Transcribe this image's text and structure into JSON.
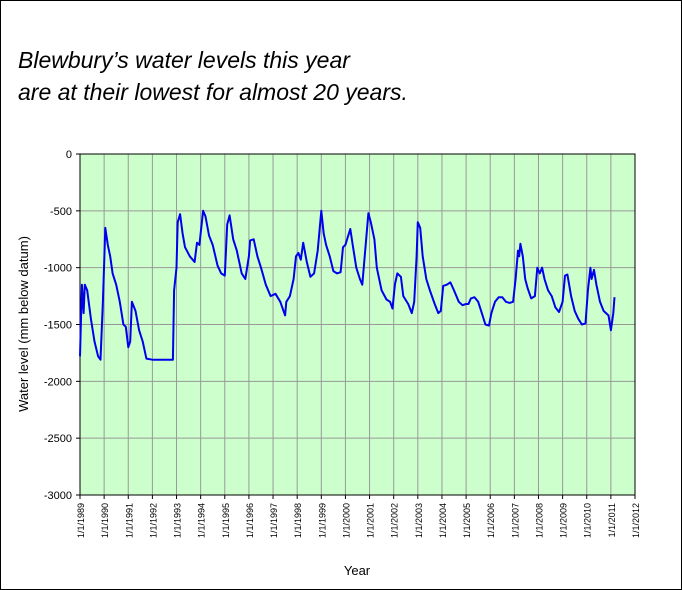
{
  "chart_data": {
    "type": "line",
    "title_lines": [
      "Blewbury’s water levels this year",
      "are at their lowest for almost 20 years."
    ],
    "xlabel": "Year",
    "ylabel": "Water level (mm below datum)",
    "x": [
      1989.0,
      1989.08,
      1989.15,
      1989.2,
      1989.3,
      1989.45,
      1989.6,
      1989.75,
      1989.85,
      1989.95,
      1990.05,
      1990.15,
      1990.25,
      1990.35,
      1990.5,
      1990.65,
      1990.8,
      1990.9,
      1991.0,
      1991.08,
      1991.15,
      1991.3,
      1991.45,
      1991.6,
      1991.75,
      1992.0,
      1992.5,
      1992.85,
      1992.9,
      1993.0,
      1993.05,
      1993.15,
      1993.25,
      1993.35,
      1993.55,
      1993.75,
      1993.85,
      1993.95,
      1994.1,
      1994.2,
      1994.35,
      1994.5,
      1994.7,
      1994.85,
      1995.0,
      1995.1,
      1995.2,
      1995.35,
      1995.5,
      1995.7,
      1995.85,
      1996.0,
      1996.05,
      1996.2,
      1996.35,
      1996.5,
      1996.7,
      1996.9,
      1997.1,
      1997.3,
      1997.5,
      1997.55,
      1997.7,
      1997.85,
      1997.95,
      1998.05,
      1998.15,
      1998.25,
      1998.4,
      1998.55,
      1998.7,
      1998.85,
      1999.0,
      1999.1,
      1999.2,
      1999.35,
      1999.5,
      1999.65,
      1999.8,
      1999.9,
      2000.0,
      2000.1,
      2000.2,
      2000.3,
      2000.45,
      2000.6,
      2000.7,
      2000.8,
      2000.95,
      2001.05,
      2001.2,
      2001.3,
      2001.5,
      2001.7,
      2001.85,
      2001.95,
      2002.05,
      2002.15,
      2002.3,
      2002.4,
      2002.6,
      2002.75,
      2002.85,
      2002.95,
      2003.0,
      2003.1,
      2003.2,
      2003.35,
      2003.5,
      2003.7,
      2003.85,
      2003.95,
      2004.05,
      2004.2,
      2004.35,
      2004.5,
      2004.7,
      2004.85,
      2005.0,
      2005.1,
      2005.2,
      2005.35,
      2005.5,
      2005.65,
      2005.8,
      2005.95,
      2006.05,
      2006.2,
      2006.35,
      2006.5,
      2006.65,
      2006.8,
      2006.95,
      2007.05,
      2007.15,
      2007.2,
      2007.25,
      2007.35,
      2007.45,
      2007.55,
      2007.7,
      2007.85,
      2007.95,
      2008.05,
      2008.15,
      2008.25,
      2008.4,
      2008.55,
      2008.7,
      2008.85,
      2009.0,
      2009.1,
      2009.2,
      2009.35,
      2009.5,
      2009.65,
      2009.8,
      2009.95,
      2010.05,
      2010.15,
      2010.2,
      2010.3,
      2010.4,
      2010.55,
      2010.7,
      2010.8,
      2010.9,
      2011.0,
      2011.1,
      2011.15
    ],
    "series": [
      {
        "name": "Water level",
        "color": "#0000ee",
        "values": [
          -1780,
          -1150,
          -1400,
          -1150,
          -1200,
          -1450,
          -1650,
          -1780,
          -1810,
          -1300,
          -650,
          -800,
          -900,
          -1050,
          -1150,
          -1300,
          -1500,
          -1520,
          -1700,
          -1650,
          -1300,
          -1380,
          -1550,
          -1650,
          -1800,
          -1810,
          -1810,
          -1810,
          -1200,
          -1000,
          -600,
          -530,
          -700,
          -820,
          -900,
          -950,
          -780,
          -800,
          -500,
          -550,
          -720,
          -800,
          -980,
          -1050,
          -1070,
          -620,
          -540,
          -750,
          -850,
          -1050,
          -1100,
          -900,
          -760,
          -750,
          -900,
          -1000,
          -1150,
          -1250,
          -1230,
          -1300,
          -1420,
          -1300,
          -1250,
          -1100,
          -900,
          -870,
          -930,
          -780,
          -950,
          -1080,
          -1050,
          -850,
          -500,
          -700,
          -800,
          -900,
          -1030,
          -1050,
          -1040,
          -820,
          -800,
          -730,
          -660,
          -800,
          -1000,
          -1100,
          -1150,
          -900,
          -520,
          -600,
          -750,
          -1000,
          -1200,
          -1280,
          -1300,
          -1360,
          -1150,
          -1050,
          -1080,
          -1250,
          -1320,
          -1400,
          -1300,
          -900,
          -600,
          -650,
          -900,
          -1100,
          -1200,
          -1320,
          -1400,
          -1380,
          -1160,
          -1150,
          -1130,
          -1200,
          -1300,
          -1330,
          -1320,
          -1320,
          -1270,
          -1260,
          -1300,
          -1400,
          -1500,
          -1510,
          -1400,
          -1300,
          -1260,
          -1260,
          -1300,
          -1310,
          -1300,
          -1100,
          -850,
          -900,
          -790,
          -900,
          -1100,
          -1180,
          -1270,
          -1250,
          -1000,
          -1050,
          -1000,
          -1100,
          -1200,
          -1250,
          -1350,
          -1390,
          -1300,
          -1070,
          -1060,
          -1250,
          -1380,
          -1450,
          -1500,
          -1490,
          -1200,
          -1000,
          -1100,
          -1020,
          -1150,
          -1300,
          -1380,
          -1400,
          -1420,
          -1550,
          -1400,
          -1260
        ]
      }
    ],
    "xlim": [
      1989,
      2012
    ],
    "xticks": [
      {
        "value": 1989,
        "label": "1/1/1989"
      },
      {
        "value": 1990,
        "label": "1/1/1990"
      },
      {
        "value": 1991,
        "label": "1/1/1991"
      },
      {
        "value": 1992,
        "label": "1/1/1992"
      },
      {
        "value": 1993,
        "label": "1/1/1993"
      },
      {
        "value": 1994,
        "label": "1/1/1994"
      },
      {
        "value": 1995,
        "label": "1/1/1995"
      },
      {
        "value": 1996,
        "label": "1/1/1996"
      },
      {
        "value": 1997,
        "label": "1/1/1997"
      },
      {
        "value": 1998,
        "label": "1/1/1998"
      },
      {
        "value": 1999,
        "label": "1/1/1999"
      },
      {
        "value": 2000,
        "label": "1/1/2000"
      },
      {
        "value": 2001,
        "label": "1/1/2001"
      },
      {
        "value": 2002,
        "label": "1/1/2002"
      },
      {
        "value": 2003,
        "label": "1/1/2003"
      },
      {
        "value": 2004,
        "label": "1/1/2004"
      },
      {
        "value": 2005,
        "label": "1/1/2005"
      },
      {
        "value": 2006,
        "label": "1/1/2006"
      },
      {
        "value": 2007,
        "label": "1/1/2007"
      },
      {
        "value": 2008,
        "label": "1/1/2008"
      },
      {
        "value": 2009,
        "label": "1/1/2009"
      },
      {
        "value": 2010,
        "label": "1/1/2010"
      },
      {
        "value": 2011,
        "label": "1/1/2011"
      },
      {
        "value": 2012,
        "label": "1/1/2012"
      }
    ],
    "ylim": [
      -3000,
      0
    ],
    "yticks": [
      0,
      -500,
      -1000,
      -1500,
      -2000,
      -2500,
      -3000
    ],
    "grid": true,
    "plot_background": "#ccffcc"
  }
}
